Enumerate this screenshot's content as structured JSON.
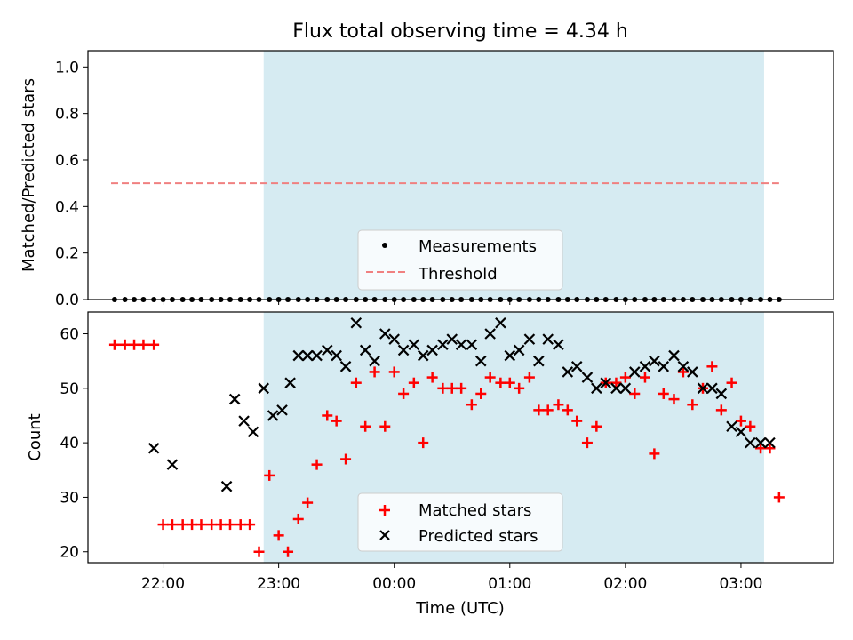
{
  "figure": {
    "title": "Flux total observing time = 4.34 h",
    "xlabel": "Time (UTC)"
  },
  "colors": {
    "shade": "#add8e6",
    "threshold": "#f08080",
    "matched": "#ff0000",
    "predicted": "#000000",
    "measurement": "#000000"
  },
  "chart_data": [
    {
      "type": "scatter",
      "name": "ratio",
      "ylabel": "Matched/Predicted stars",
      "xlim": [
        21.35,
        3.8
      ],
      "ylim": [
        0,
        1.07
      ],
      "x_ticks": [
        "22:00",
        "23:00",
        "00:00",
        "01:00",
        "02:00",
        "03:00"
      ],
      "y_ticks": [
        "0.0",
        "0.2",
        "0.4",
        "0.6",
        "0.8",
        "1.0"
      ],
      "shaded_region": [
        22.87,
        3.2
      ],
      "threshold": {
        "label": "Threshold",
        "value": 0.5,
        "x_range": [
          21.55,
          3.33
        ]
      },
      "legend": {
        "placement": "lower center",
        "entries": [
          "Measurements",
          "Threshold"
        ]
      },
      "series": [
        {
          "name": "Measurements",
          "marker": "dot",
          "x": [
            21.58,
            21.67,
            21.75,
            21.83,
            21.92,
            22.0,
            22.08,
            22.17,
            22.25,
            22.33,
            22.42,
            22.5,
            22.58,
            22.67,
            22.75,
            22.83,
            22.92,
            23.0,
            23.08,
            23.17,
            23.25,
            23.33,
            23.42,
            23.5,
            23.58,
            23.67,
            23.75,
            23.83,
            23.92,
            24.0,
            24.08,
            24.17,
            24.25,
            24.33,
            24.42,
            24.5,
            24.58,
            24.67,
            24.75,
            24.83,
            24.92,
            25.0,
            25.08,
            25.17,
            25.25,
            25.33,
            25.42,
            25.5,
            25.58,
            25.67,
            25.75,
            25.83,
            25.92,
            26.0,
            26.08,
            26.17,
            26.25,
            26.33,
            26.42,
            26.5,
            26.58,
            26.67,
            26.75,
            26.83,
            26.92,
            27.0,
            27.08,
            27.17,
            27.25,
            27.33
          ],
          "y": [
            0.0,
            0.0,
            0.0,
            0.0,
            0.0,
            0.0,
            0.0,
            0.0,
            0.0,
            0.0,
            0.0,
            0.0,
            0.0,
            0.0,
            0.0,
            0.0,
            0.0,
            0.0,
            0.0,
            0.0,
            0.0,
            0.0,
            0.0,
            0.0,
            0.0,
            0.0,
            0.0,
            0.0,
            0.0,
            0.0,
            0.0,
            0.0,
            0.0,
            0.0,
            0.0,
            0.0,
            0.0,
            0.0,
            0.0,
            0.0,
            0.0,
            0.0,
            0.0,
            0.0,
            0.0,
            0.0,
            0.0,
            0.0,
            0.0,
            0.0,
            0.0,
            0.0,
            0.0,
            0.0,
            0.0,
            0.0,
            0.0,
            0.0,
            0.0,
            0.0,
            0.0,
            0.0,
            0.0,
            0.0,
            0.0,
            0.0,
            0.0,
            0.0,
            0.0,
            0.0
          ]
        }
      ]
    },
    {
      "type": "scatter",
      "name": "counts",
      "ylabel": "Count",
      "xlim": [
        21.35,
        3.8
      ],
      "ylim": [
        18,
        64
      ],
      "x_ticks": [
        "22:00",
        "23:00",
        "00:00",
        "01:00",
        "02:00",
        "03:00"
      ],
      "y_ticks": [
        "20",
        "30",
        "40",
        "50",
        "60"
      ],
      "shaded_region": [
        22.87,
        3.2
      ],
      "legend": {
        "placement": "lower center",
        "entries": [
          "Matched stars",
          "Predicted stars"
        ]
      },
      "series": [
        {
          "name": "Matched stars",
          "marker": "plus",
          "x": [
            21.58,
            21.67,
            21.75,
            21.83,
            21.92,
            22.0,
            22.08,
            22.17,
            22.25,
            22.33,
            22.42,
            22.5,
            22.58,
            22.67,
            22.75,
            22.83,
            22.92,
            23.0,
            23.08,
            23.17,
            23.25,
            23.33,
            23.42,
            23.5,
            23.58,
            23.67,
            23.75,
            23.83,
            23.92,
            24.0,
            24.08,
            24.17,
            24.25,
            24.33,
            24.42,
            24.5,
            24.58,
            24.67,
            24.75,
            24.83,
            24.92,
            25.0,
            25.08,
            25.17,
            25.25,
            25.33,
            25.42,
            25.5,
            25.58,
            25.67,
            25.75,
            25.83,
            25.92,
            26.0,
            26.08,
            26.17,
            26.25,
            26.33,
            26.42,
            26.5,
            26.58,
            26.67,
            26.75,
            26.83,
            26.92,
            27.0,
            27.08,
            27.17,
            27.25,
            27.33
          ],
          "y": [
            58,
            58,
            58,
            58,
            58,
            25,
            25,
            25,
            25,
            25,
            25,
            25,
            25,
            25,
            25,
            20,
            34,
            23,
            20,
            26,
            29,
            36,
            45,
            44,
            37,
            51,
            43,
            53,
            43,
            53,
            49,
            51,
            40,
            52,
            50,
            50,
            50,
            47,
            49,
            52,
            51,
            51,
            50,
            52,
            46,
            46,
            47,
            46,
            44,
            40,
            43,
            51,
            51,
            52,
            49,
            52,
            38,
            49,
            48,
            53,
            47,
            50,
            54,
            46,
            51,
            44,
            43,
            39,
            39,
            30
          ]
        },
        {
          "name": "Predicted stars",
          "marker": "x",
          "x": [
            21.92,
            22.08,
            22.55,
            22.62,
            22.7,
            22.78,
            22.87,
            22.95,
            23.03,
            23.1,
            23.17,
            23.25,
            23.33,
            23.42,
            23.5,
            23.58,
            23.67,
            23.75,
            23.83,
            23.92,
            24.0,
            24.08,
            24.17,
            24.25,
            24.33,
            24.42,
            24.5,
            24.58,
            24.67,
            24.75,
            24.83,
            24.92,
            25.0,
            25.08,
            25.17,
            25.25,
            25.33,
            25.42,
            25.5,
            25.58,
            25.67,
            25.75,
            25.83,
            25.92,
            26.0,
            26.08,
            26.17,
            26.25,
            26.33,
            26.42,
            26.5,
            26.58,
            26.67,
            26.75,
            26.83,
            26.92,
            27.0,
            27.08,
            27.17,
            27.25
          ],
          "y": [
            39,
            36,
            32,
            48,
            44,
            42,
            50,
            45,
            46,
            51,
            56,
            56,
            56,
            57,
            56,
            54,
            62,
            57,
            55,
            60,
            59,
            57,
            58,
            56,
            57,
            58,
            59,
            58,
            58,
            55,
            60,
            62,
            56,
            57,
            59,
            55,
            59,
            58,
            53,
            54,
            52,
            50,
            51,
            50,
            50,
            53,
            54,
            55,
            54,
            56,
            54,
            53,
            50,
            50,
            49,
            43,
            42,
            40,
            40,
            40
          ]
        }
      ]
    }
  ]
}
